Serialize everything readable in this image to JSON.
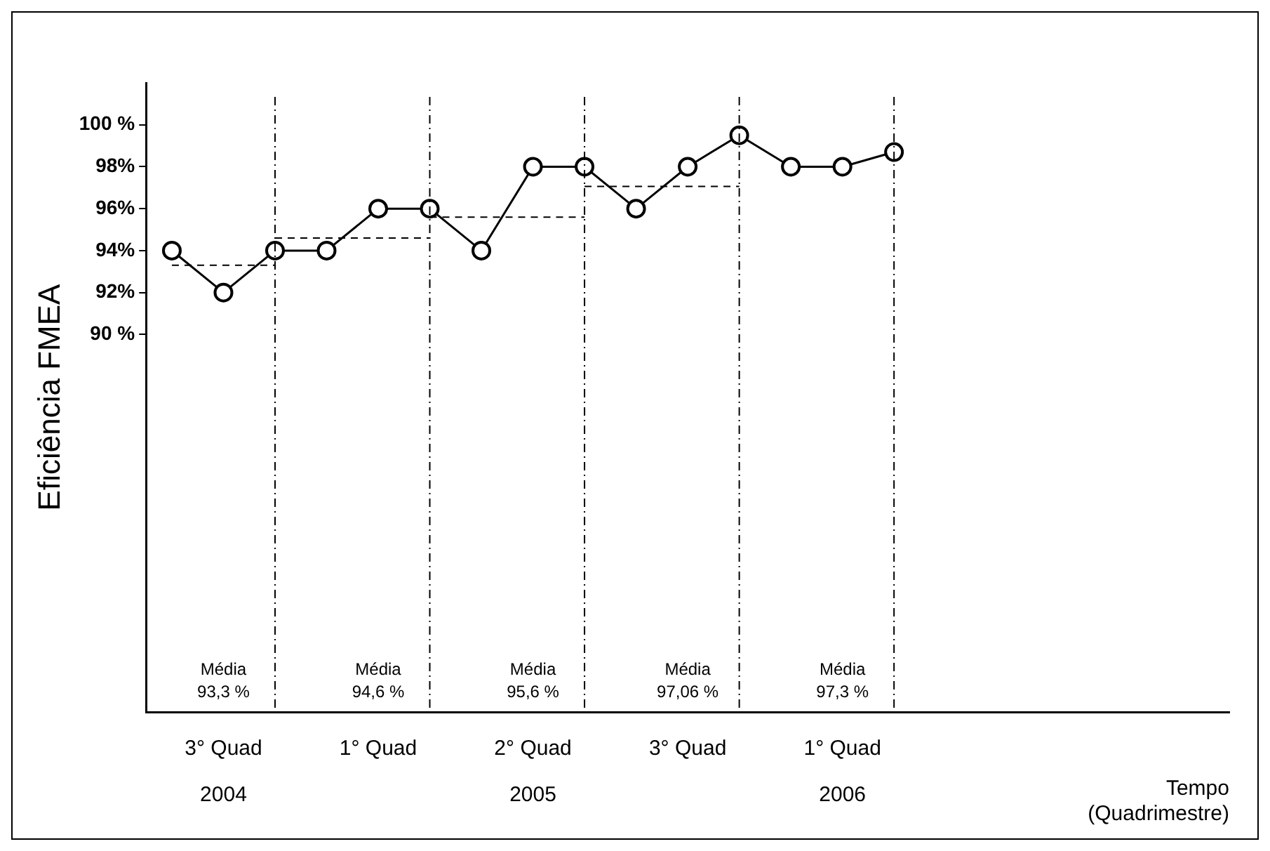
{
  "chart_data": {
    "type": "line",
    "ylabel": "Eficiência FMEA",
    "xlabel": "Tempo\n(Quadrimestre)",
    "categories": [
      null,
      "3° Quad\n2004",
      null,
      null,
      "1° Quad",
      null,
      null,
      "2° Quad\n2005",
      null,
      null,
      "3° Quad",
      null,
      null,
      "1° Quad\n2006",
      null,
      null,
      null,
      null,
      null,
      null,
      null
    ],
    "series": [
      {
        "color": "#000000",
        "values": [
          94,
          92,
          94,
          94,
          96,
          96,
          94,
          98,
          98,
          96,
          98,
          99.5,
          98,
          98,
          98.7,
          null,
          null,
          null,
          null,
          null,
          null
        ]
      },
      {
        "color": "#000000",
        "line_style": "dashed",
        "marker": "none",
        "values": [
          93.3,
          93.3,
          93.3,
          null,
          null,
          null,
          null,
          null,
          null,
          null,
          null,
          null,
          null,
          null,
          null,
          null,
          null,
          null,
          null,
          null,
          null
        ]
      },
      {
        "color": "#000000",
        "line_style": "dashed",
        "marker": "none",
        "values": [
          null,
          null,
          94.6,
          94.6,
          94.6,
          94.6,
          null,
          null,
          null,
          null,
          null,
          null,
          null,
          null,
          null,
          null,
          null,
          null,
          null,
          null,
          null
        ]
      },
      {
        "color": "#000000",
        "line_style": "dashed",
        "marker": "none",
        "values": [
          null,
          null,
          null,
          null,
          null,
          95.6,
          95.6,
          95.6,
          95.6,
          null,
          null,
          null,
          null,
          null,
          null,
          null,
          null,
          null,
          null,
          null,
          null
        ]
      },
      {
        "color": "#000000",
        "line_style": "dashed",
        "marker": "none",
        "values": [
          null,
          null,
          null,
          null,
          null,
          null,
          null,
          null,
          97.06,
          97.06,
          97.06,
          97.06,
          null,
          null,
          null,
          null,
          null,
          null,
          null,
          null,
          null
        ]
      }
    ],
    "marker": "circle",
    "line_style": "solid",
    "ylim": [
      72,
      102
    ],
    "yticks": [
      {
        "value": 90,
        "label": "90 %"
      },
      {
        "value": 92,
        "label": "92%"
      },
      {
        "value": 94,
        "label": "94%"
      },
      {
        "value": 96,
        "label": "96%"
      },
      {
        "value": 98,
        "label": "98%"
      },
      {
        "value": 100,
        "label": "100 %"
      }
    ],
    "annotations": [
      "Média\n93,3 %",
      "Média\n94,6 %",
      "Média\n95,6 %",
      "Média\n97,06 %",
      "Média\n97,3 %"
    ]
  }
}
